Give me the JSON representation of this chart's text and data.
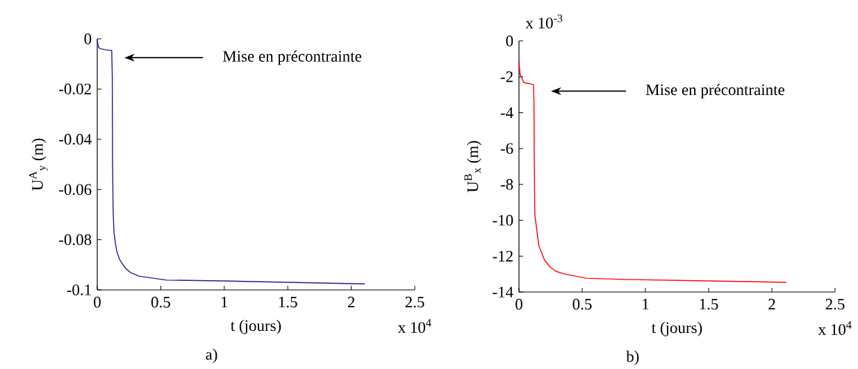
{
  "chart_data": [
    {
      "type": "line",
      "xlabel": "t (jours)",
      "ylabel": "U$^{A}$$_{y}$ (m)",
      "x": [
        0,
        0.0044,
        0.0109,
        0.0219,
        0.0656,
        0.1138,
        0.1182,
        0.1203,
        0.1247,
        0.1313,
        0.1422,
        0.1532,
        0.175,
        0.2188,
        0.2626,
        0.3282,
        0.547,
        0.9846,
        1.4222,
        2.107
      ],
      "series": [
        {
          "color": "#1c1c8f",
          "values": [
            0,
            -0.0022,
            -0.0033,
            -0.0039,
            -0.0044,
            -0.0046,
            -0.0149,
            -0.0481,
            -0.068,
            -0.0768,
            -0.0812,
            -0.0845,
            -0.0878,
            -0.0912,
            -0.0931,
            -0.0945,
            -0.0961,
            -0.0964,
            -0.0969,
            -0.0976
          ]
        }
      ],
      "xlim": [
        0,
        2.5
      ],
      "ylim": [
        -0.1,
        0
      ],
      "xticks": [
        0,
        0.5,
        1,
        1.5,
        2,
        2.5
      ],
      "yticks": [
        -0.1,
        -0.08,
        -0.06,
        -0.04,
        -0.02,
        0
      ],
      "annotations": [
        "Mise en précontrainte",
        "x 10$^{4}$",
        "a)"
      ],
      "grid": false
    },
    {
      "type": "line",
      "xlabel": "t (jours)",
      "ylabel": "U$^{B}$$_{x}$ (m)",
      "x": [
        0,
        0.0088,
        0.0374,
        0.1143,
        0.1187,
        0.1209,
        0.1253,
        0.1473,
        0.1583,
        0.1802,
        0.2022,
        0.2462,
        0.2901,
        0.3561,
        0.5319,
        0.8396,
        1.499,
        2.1145
      ],
      "series": [
        {
          "color": "#ff0000",
          "values": [
            -1.16,
            -1.86,
            -2.32,
            -2.43,
            -3.48,
            -6.57,
            -9.67,
            -10.9,
            -11.45,
            -11.83,
            -12.22,
            -12.61,
            -12.84,
            -12.99,
            -13.23,
            -13.3,
            -13.38,
            -13.46
          ]
        }
      ],
      "xlim": [
        0,
        2.5
      ],
      "ylim": [
        -14,
        0
      ],
      "xticks": [
        0,
        0.5,
        1,
        1.5,
        2,
        2.5
      ],
      "yticks": [
        -14,
        -12,
        -10,
        -8,
        -6,
        -4,
        -2,
        0
      ],
      "annotations": [
        "Mise en précontrainte",
        "x 10$^{4}$",
        "x 10$^{-3}$",
        "b)"
      ],
      "grid": false
    }
  ]
}
